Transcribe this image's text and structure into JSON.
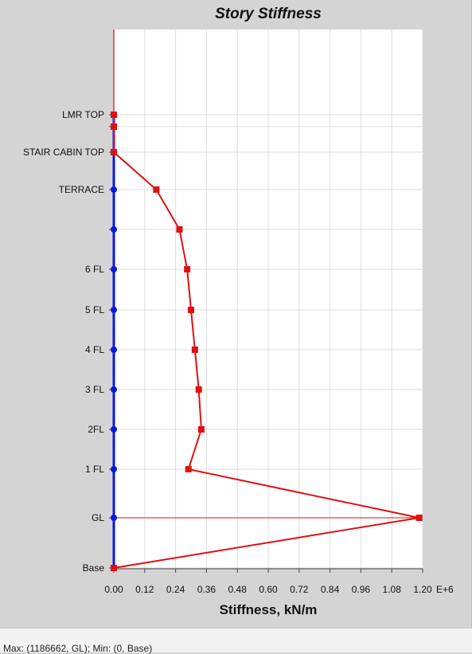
{
  "chart_data": {
    "type": "line",
    "title": "Story Stiffness",
    "xlabel": "Stiffness, kN/m",
    "x_tick_labels": [
      "0.00",
      "0.12",
      "0.24",
      "0.36",
      "0.48",
      "0.60",
      "0.72",
      "0.84",
      "0.96",
      "1.08",
      "1.20"
    ],
    "x_scale_label": "E+6",
    "xlim": [
      0,
      1.2
    ],
    "grid": true,
    "stories": [
      "Base",
      "GL",
      "1 FL",
      "2FL",
      "3 FL",
      "4 FL",
      "5 FL",
      "6 FL",
      "",
      "TERRACE",
      "STAIR CABIN TOP",
      "",
      "LMR TOP"
    ],
    "series": [
      {
        "color": "#e01010",
        "values": [
          0,
          1.186662,
          0.29,
          0.34,
          0.33,
          0.315,
          0.3,
          0.285,
          0.255,
          0.165,
          0.0,
          0.0,
          0.0
        ]
      },
      {
        "color": "#0a18e0",
        "values": [
          0,
          0,
          0,
          0,
          0,
          0,
          0,
          0,
          0,
          0,
          0,
          0,
          0
        ]
      }
    ]
  },
  "status": {
    "text": "Max: (1186662, GL);   Min: (0, Base)"
  }
}
